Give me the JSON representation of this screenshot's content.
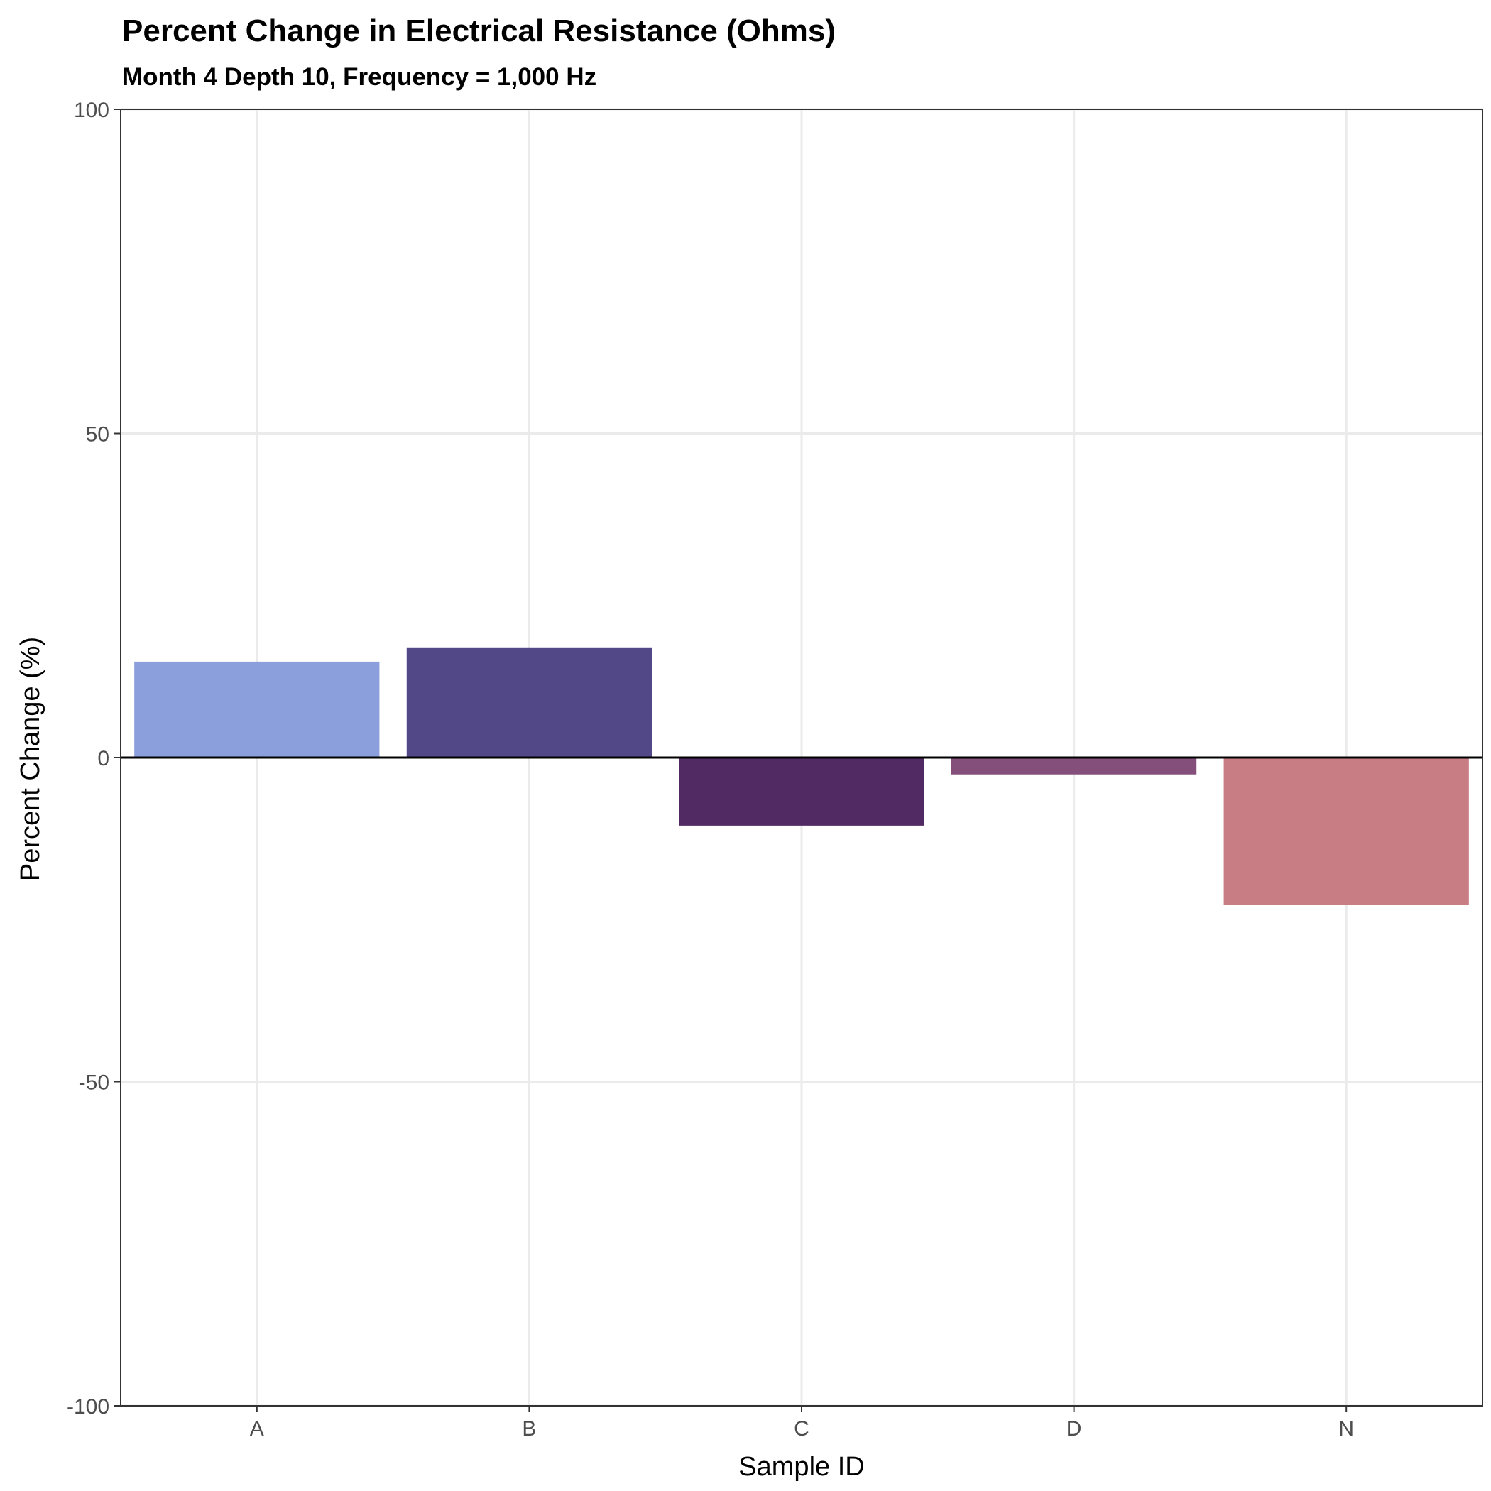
{
  "chart_data": {
    "type": "bar",
    "title": "Percent Change in Electrical Resistance (Ohms)",
    "subtitle": "Month 4 Depth 10, Frequency = 1,000 Hz",
    "xlabel": "Sample ID",
    "ylabel": "Percent Change (%)",
    "categories": [
      "A",
      "B",
      "C",
      "D",
      "N"
    ],
    "values": [
      14.8,
      17.0,
      -10.5,
      -2.6,
      -22.7
    ],
    "colors": [
      "#8a9fdb",
      "#524887",
      "#512a63",
      "#844f7b",
      "#c87c84"
    ],
    "ylim": [
      -100,
      100
    ],
    "yticks": [
      100,
      50,
      0,
      -50,
      -100
    ],
    "ytick_labels": [
      "100",
      "50",
      "0",
      "-50",
      "-100"
    ],
    "grid": true,
    "legend": "none",
    "reference_line": 0
  }
}
